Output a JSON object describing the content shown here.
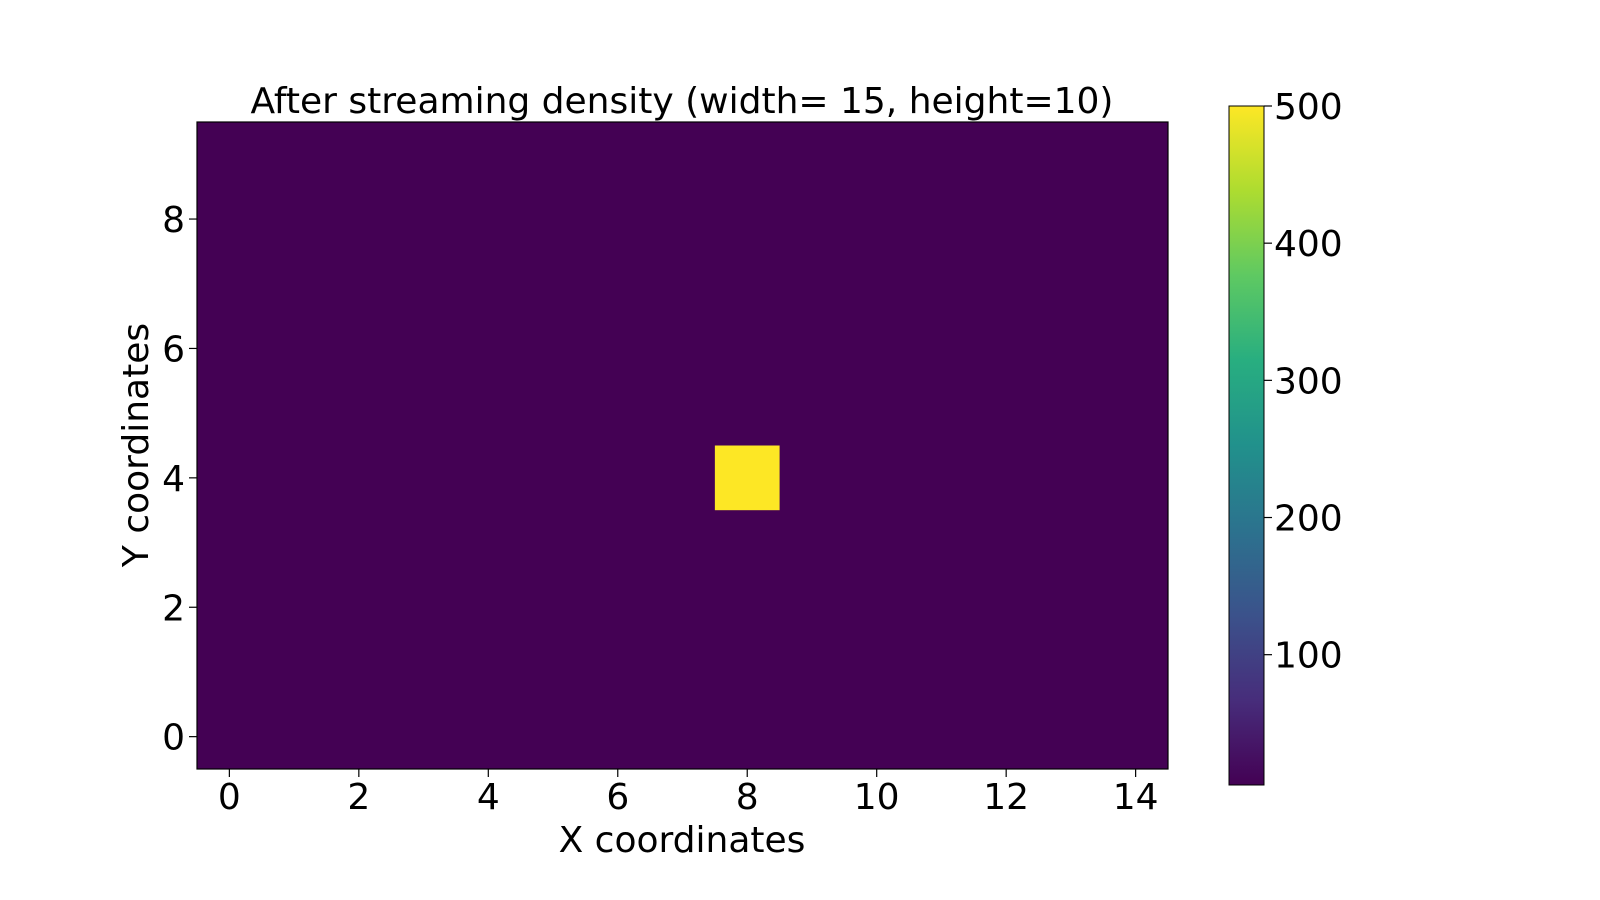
{
  "chart_data": {
    "type": "heatmap",
    "title": "After streaming density (width= 15, height=10)",
    "xlabel": "X coordinates",
    "ylabel": "Y coordinates",
    "width": 15,
    "height": 10,
    "xlim": [
      -0.5,
      14.5
    ],
    "ylim": [
      -0.5,
      9.5
    ],
    "xticks": [
      0,
      2,
      4,
      6,
      8,
      10,
      12,
      14
    ],
    "yticks": [
      0,
      2,
      4,
      6,
      8
    ],
    "background_value": 5,
    "colormap": "viridis",
    "colorbar": {
      "min": 5,
      "max": 500,
      "ticks": [
        100,
        200,
        300,
        400,
        500
      ]
    },
    "cells": [
      {
        "x": 8,
        "y": 4,
        "value": 500
      }
    ],
    "grid": false
  },
  "colors": {
    "low": "#440154",
    "high": "#fde725"
  }
}
